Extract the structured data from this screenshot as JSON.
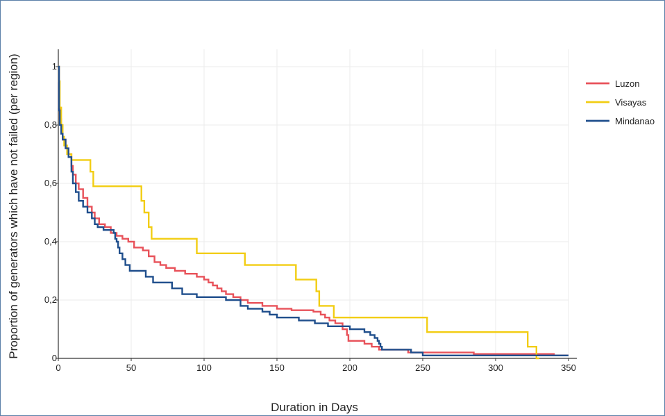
{
  "chart_data": {
    "type": "line",
    "step": true,
    "title": "",
    "xlabel": "Duration in Days",
    "ylabel": "Proportion of generators which have not failed (per region)",
    "xlim": [
      0,
      350
    ],
    "ylim": [
      0,
      1
    ],
    "xticks": [
      0,
      50,
      100,
      150,
      200,
      250,
      300,
      350
    ],
    "yticks": [
      0,
      0.2,
      0.4,
      0.6,
      0.8,
      1
    ],
    "xtick_labels": [
      "0",
      "50",
      "100",
      "150",
      "200",
      "250",
      "300",
      "350"
    ],
    "ytick_labels": [
      "0",
      "0,2",
      "0,4",
      "0,6",
      "0,8",
      "1"
    ],
    "grid": true,
    "legend_position": "right",
    "series": [
      {
        "name": "Luzon",
        "color": "#e8525a",
        "points": [
          [
            0,
            1
          ],
          [
            0.5,
            0.86
          ],
          [
            1,
            0.82
          ],
          [
            2,
            0.78
          ],
          [
            3,
            0.75
          ],
          [
            5,
            0.72
          ],
          [
            7,
            0.7
          ],
          [
            9,
            0.66
          ],
          [
            10,
            0.63
          ],
          [
            12,
            0.6
          ],
          [
            14,
            0.58
          ],
          [
            17,
            0.55
          ],
          [
            20,
            0.52
          ],
          [
            23,
            0.5
          ],
          [
            25,
            0.48
          ],
          [
            28,
            0.46
          ],
          [
            32,
            0.45
          ],
          [
            36,
            0.43
          ],
          [
            40,
            0.42
          ],
          [
            44,
            0.41
          ],
          [
            48,
            0.4
          ],
          [
            52,
            0.38
          ],
          [
            58,
            0.37
          ],
          [
            62,
            0.35
          ],
          [
            66,
            0.33
          ],
          [
            70,
            0.32
          ],
          [
            74,
            0.31
          ],
          [
            80,
            0.3
          ],
          [
            87,
            0.29
          ],
          [
            95,
            0.28
          ],
          [
            100,
            0.27
          ],
          [
            103,
            0.26
          ],
          [
            106,
            0.25
          ],
          [
            109,
            0.24
          ],
          [
            112,
            0.23
          ],
          [
            115,
            0.22
          ],
          [
            120,
            0.21
          ],
          [
            125,
            0.2
          ],
          [
            130,
            0.19
          ],
          [
            140,
            0.18
          ],
          [
            150,
            0.17
          ],
          [
            160,
            0.165
          ],
          [
            175,
            0.16
          ],
          [
            180,
            0.15
          ],
          [
            183,
            0.14
          ],
          [
            186,
            0.13
          ],
          [
            190,
            0.12
          ],
          [
            195,
            0.1
          ],
          [
            198,
            0.08
          ],
          [
            199,
            0.06
          ],
          [
            210,
            0.05
          ],
          [
            215,
            0.04
          ],
          [
            220,
            0.03
          ],
          [
            240,
            0.02
          ],
          [
            285,
            0.015
          ],
          [
            340,
            0.01
          ],
          [
            350,
            0.01
          ]
        ]
      },
      {
        "name": "Visayas",
        "color": "#f2cd13",
        "points": [
          [
            0,
            1
          ],
          [
            0.5,
            0.95
          ],
          [
            1,
            0.86
          ],
          [
            2,
            0.8
          ],
          [
            3,
            0.76
          ],
          [
            4,
            0.73
          ],
          [
            6,
            0.7
          ],
          [
            9,
            0.68
          ],
          [
            22,
            0.64
          ],
          [
            24,
            0.59
          ],
          [
            57,
            0.54
          ],
          [
            59,
            0.5
          ],
          [
            62,
            0.45
          ],
          [
            64,
            0.41
          ],
          [
            95,
            0.36
          ],
          [
            128,
            0.32
          ],
          [
            163,
            0.27
          ],
          [
            177,
            0.23
          ],
          [
            179,
            0.18
          ],
          [
            189,
            0.14
          ],
          [
            253,
            0.09
          ],
          [
            322,
            0.04
          ],
          [
            328,
            0.0
          ],
          [
            330,
            0.0
          ]
        ]
      },
      {
        "name": "Mindanao",
        "color": "#1f4e8c",
        "points": [
          [
            0,
            1
          ],
          [
            0.5,
            0.85
          ],
          [
            1,
            0.8
          ],
          [
            2,
            0.77
          ],
          [
            3,
            0.75
          ],
          [
            5,
            0.72
          ],
          [
            7,
            0.69
          ],
          [
            9,
            0.64
          ],
          [
            10,
            0.6
          ],
          [
            12,
            0.57
          ],
          [
            14,
            0.54
          ],
          [
            17,
            0.52
          ],
          [
            20,
            0.5
          ],
          [
            23,
            0.48
          ],
          [
            25,
            0.46
          ],
          [
            27,
            0.45
          ],
          [
            31,
            0.44
          ],
          [
            38,
            0.43
          ],
          [
            39,
            0.41
          ],
          [
            40,
            0.4
          ],
          [
            41,
            0.38
          ],
          [
            42,
            0.36
          ],
          [
            44,
            0.34
          ],
          [
            46,
            0.32
          ],
          [
            49,
            0.3
          ],
          [
            60,
            0.28
          ],
          [
            65,
            0.26
          ],
          [
            78,
            0.24
          ],
          [
            85,
            0.22
          ],
          [
            95,
            0.21
          ],
          [
            115,
            0.2
          ],
          [
            125,
            0.18
          ],
          [
            130,
            0.17
          ],
          [
            140,
            0.16
          ],
          [
            145,
            0.15
          ],
          [
            150,
            0.14
          ],
          [
            165,
            0.13
          ],
          [
            176,
            0.12
          ],
          [
            185,
            0.11
          ],
          [
            200,
            0.1
          ],
          [
            210,
            0.09
          ],
          [
            214,
            0.08
          ],
          [
            217,
            0.07
          ],
          [
            219,
            0.06
          ],
          [
            220,
            0.05
          ],
          [
            221,
            0.04
          ],
          [
            222,
            0.03
          ],
          [
            242,
            0.02
          ],
          [
            250,
            0.01
          ],
          [
            340,
            0.01
          ],
          [
            350,
            0.01
          ]
        ]
      }
    ]
  }
}
